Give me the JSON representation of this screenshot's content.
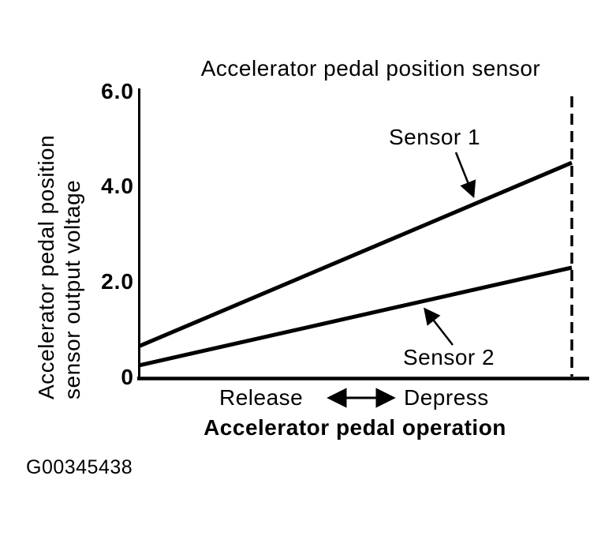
{
  "figure": {
    "id_label": "G00345438"
  },
  "chart_data": {
    "type": "line",
    "title": "Accelerator pedal position sensor",
    "ylabel": "Accelerator pedal position sensor output voltage",
    "ylabel_lines": [
      "Accelerator pedal position",
      "sensor output voltage"
    ],
    "xlabel": "Accelerator pedal operation",
    "x_categories": [
      "Release",
      "Depress"
    ],
    "ylim": [
      0,
      6
    ],
    "y_ticks": [
      {
        "label": "6.0",
        "value": 6.0
      },
      {
        "label": "4.0",
        "value": 4.0
      },
      {
        "label": "2.0",
        "value": 2.0
      },
      {
        "label": "0",
        "value": 0
      }
    ],
    "series": [
      {
        "name": "Sensor 1",
        "values": [
          0.65,
          4.5
        ]
      },
      {
        "name": "Sensor 2",
        "values": [
          0.25,
          2.3
        ]
      }
    ],
    "grid": false,
    "legend_position": "inline-annotations",
    "line_color": "#000000",
    "background_color": "#ffffff",
    "dashed_vertical_line": "right edge of plot at full depress"
  }
}
